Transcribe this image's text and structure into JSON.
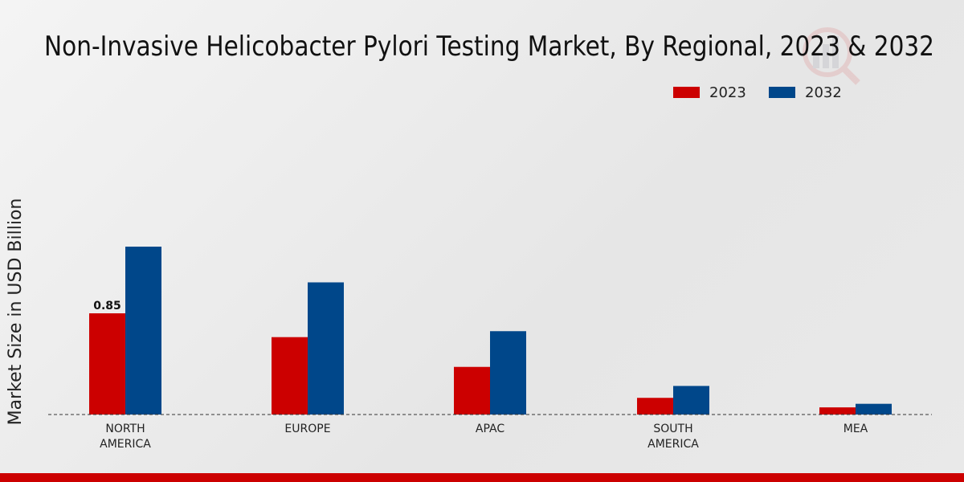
{
  "chart_data": {
    "type": "bar",
    "title": "Non-Invasive Helicobacter Pylori Testing Market, By Regional, 2023 & 2032",
    "xlabel": "",
    "ylabel": "Market Size in USD Billion",
    "categories": [
      "NORTH AMERICA",
      "EUROPE",
      "APAC",
      "SOUTH AMERICA",
      "MEA"
    ],
    "category_lines": [
      [
        "NORTH",
        "AMERICA"
      ],
      [
        "EUROPE"
      ],
      [
        "APAC"
      ],
      [
        "SOUTH",
        "AMERICA"
      ],
      [
        "MEA"
      ]
    ],
    "series": [
      {
        "name": "2023",
        "color": "#cc0000",
        "values": [
          0.85,
          0.65,
          0.4,
          0.14,
          0.06
        ]
      },
      {
        "name": "2032",
        "color": "#00478a",
        "values": [
          1.41,
          1.11,
          0.7,
          0.24,
          0.09
        ]
      }
    ],
    "data_labels": [
      {
        "series": 0,
        "index": 0,
        "text": "0.85"
      }
    ],
    "ylim": [
      0,
      1.5
    ],
    "grid": false,
    "legend": "top-right"
  }
}
